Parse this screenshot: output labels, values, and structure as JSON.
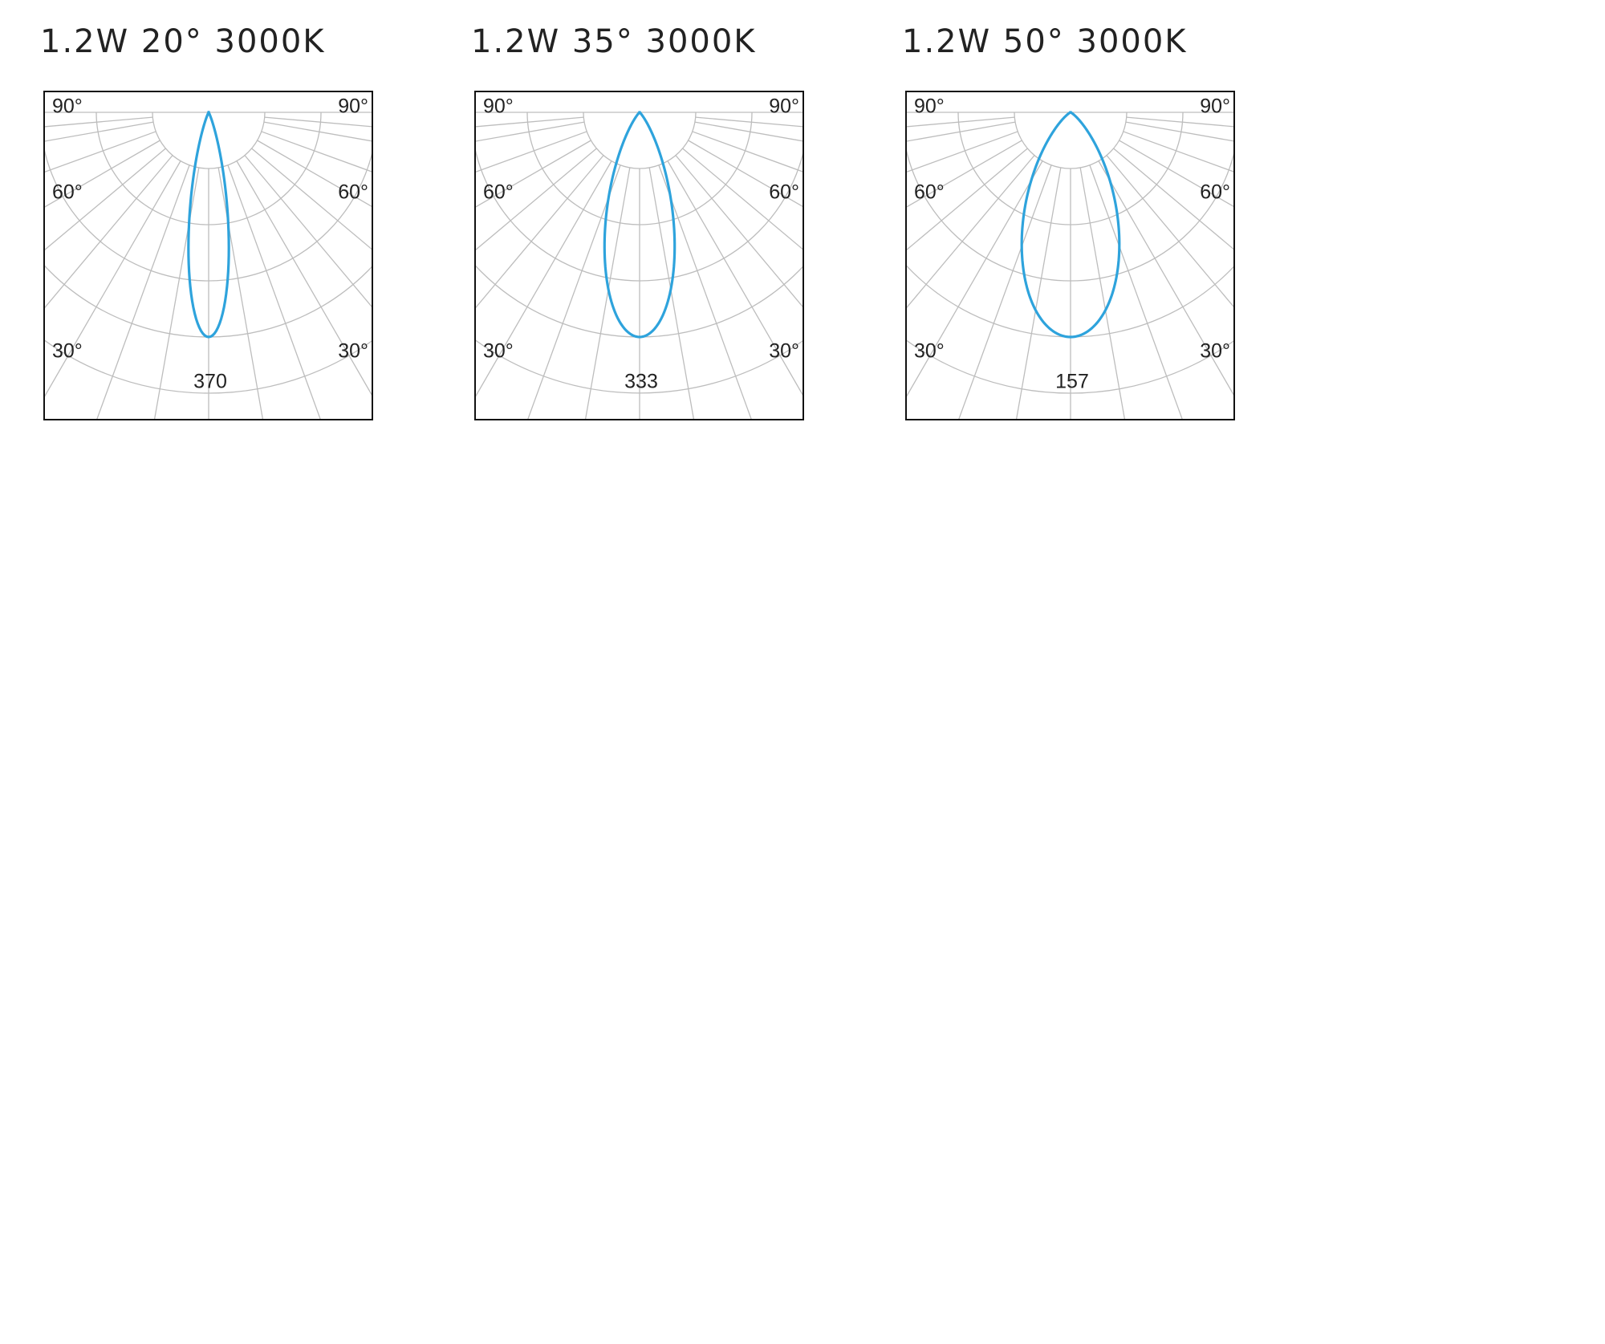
{
  "panels": [
    {
      "title": "1.2W 20° 3000K",
      "angle_labels": [
        "90°",
        "60°",
        "30°"
      ],
      "peak": "370"
    },
    {
      "title": "1.2W 35° 3000K",
      "angle_labels": [
        "90°",
        "60°",
        "30°"
      ],
      "peak": "333"
    },
    {
      "title": "1.2W 50° 3000K",
      "angle_labels": [
        "90°",
        "60°",
        "30°"
      ],
      "peak": "157"
    }
  ]
}
